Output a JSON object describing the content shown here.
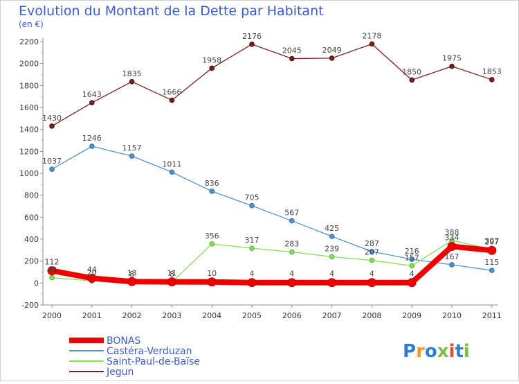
{
  "header": {
    "title": "Evolution du Montant de la Dette par Habitant",
    "subtitle": "(en €)"
  },
  "brand": {
    "logo_text": "Proxiti"
  },
  "chart_data": {
    "type": "line",
    "x": [
      "2000",
      "2001",
      "2002",
      "2003",
      "2004",
      "2005",
      "2006",
      "2007",
      "2008",
      "2009",
      "2010",
      "2011"
    ],
    "ylim": [
      -200,
      2200
    ],
    "yticks": [
      "-200",
      "0",
      "200",
      "400",
      "600",
      "800",
      "1000",
      "1200",
      "1400",
      "1600",
      "1800",
      "2000",
      "2200"
    ],
    "grid": false,
    "legend_position": "bottom-left",
    "series": [
      {
        "name": "BONAS",
        "color": "#ee0000",
        "values": [
          112,
          44,
          13,
          11,
          10,
          4,
          4,
          4,
          4,
          4,
          334,
          297
        ]
      },
      {
        "name": "Castéra-Verduzan",
        "color": "#4f93d0",
        "values": [
          1037,
          1246,
          1157,
          1011,
          836,
          705,
          567,
          425,
          287,
          216,
          167,
          115
        ]
      },
      {
        "name": "Saint-Paul-de-Baïse",
        "color": "#86dd5a",
        "values": [
          49,
          20,
          8,
          8,
          356,
          317,
          283,
          239,
          207,
          157,
          388,
          307
        ]
      },
      {
        "name": "Jegun",
        "color": "#7a2020",
        "values": [
          1430,
          1643,
          1835,
          1666,
          1958,
          2176,
          2045,
          2049,
          2178,
          1850,
          1975,
          1853
        ]
      }
    ]
  }
}
